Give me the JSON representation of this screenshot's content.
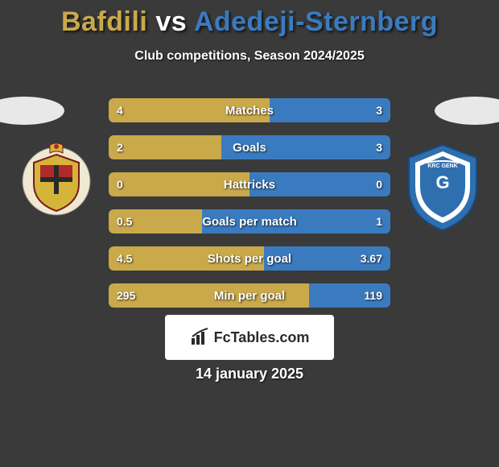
{
  "title": {
    "left_name": "Bafdili",
    "vs": "vs",
    "right_name": "Adedeji-Sternberg",
    "left_color": "#c9a94a",
    "right_color": "#3a7bbf"
  },
  "subtitle": "Club competitions, Season 2024/2025",
  "colors": {
    "left_bar": "#c9a94a",
    "right_bar": "#3a7bbf",
    "background": "#3a3a3a"
  },
  "stats": [
    {
      "label": "Matches",
      "left_val": "4",
      "right_val": "3",
      "left_pct": 57,
      "right_pct": 43
    },
    {
      "label": "Goals",
      "left_val": "2",
      "right_val": "3",
      "left_pct": 40,
      "right_pct": 60
    },
    {
      "label": "Hattricks",
      "left_val": "0",
      "right_val": "0",
      "left_pct": 50,
      "right_pct": 50
    },
    {
      "label": "Goals per match",
      "left_val": "0.5",
      "right_val": "1",
      "left_pct": 33,
      "right_pct": 67
    },
    {
      "label": "Shots per goal",
      "left_val": "4.5",
      "right_val": "3.67",
      "left_pct": 55,
      "right_pct": 45
    },
    {
      "label": "Min per goal",
      "left_val": "295",
      "right_val": "119",
      "left_pct": 71,
      "right_pct": 29
    }
  ],
  "footer": {
    "logo_text": "FcTables.com",
    "date": "14 january 2025"
  },
  "badges": {
    "left": {
      "primary": "#d4b43a",
      "secondary": "#b02a2a",
      "text": "MECHELEN"
    },
    "right": {
      "primary": "#2e6fb0",
      "secondary": "#ffffff",
      "text": "GENK"
    }
  }
}
